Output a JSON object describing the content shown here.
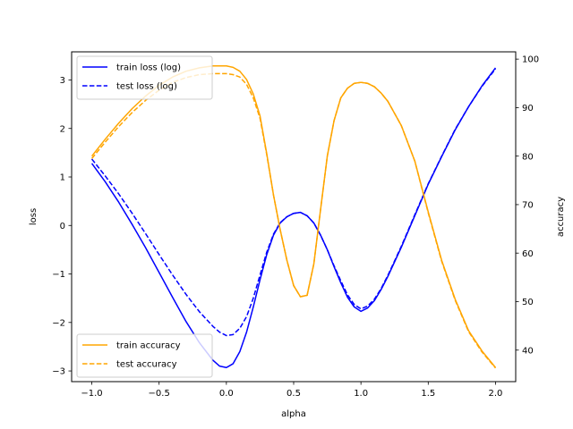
{
  "chart_data": {
    "type": "line",
    "xlabel": "alpha",
    "ylabel": "loss",
    "y2label": "accuracy",
    "xlim": [
      -1.15,
      2.15
    ],
    "ylim": [
      -3.22,
      3.58
    ],
    "y2lim": [
      33.5,
      101.5
    ],
    "xticks": [
      -1.0,
      -0.5,
      0.0,
      0.5,
      1.0,
      1.5,
      2.0
    ],
    "xtick_labels": [
      "−1.0",
      "−0.5",
      "0.0",
      "0.5",
      "1.0",
      "1.5",
      "2.0"
    ],
    "yticks": [
      -3,
      -2,
      -1,
      0,
      1,
      2,
      3
    ],
    "ytick_labels": [
      "−3",
      "−2",
      "−1",
      "0",
      "1",
      "2",
      "3"
    ],
    "y2ticks": [
      40,
      50,
      60,
      70,
      80,
      90,
      100
    ],
    "y2tick_labels": [
      "40",
      "50",
      "60",
      "70",
      "80",
      "90",
      "100"
    ],
    "grid": false,
    "legends": [
      {
        "placement": "top-left",
        "entries": [
          "train loss (log)",
          "test loss (log)"
        ]
      },
      {
        "placement": "bottom-left",
        "entries": [
          "train accuracy",
          "test accuracy"
        ]
      }
    ],
    "series": [
      {
        "name": "train loss (log)",
        "axis": "left",
        "color": "#0000ff",
        "style": "solid",
        "x": [
          -1.0,
          -0.9,
          -0.8,
          -0.7,
          -0.6,
          -0.5,
          -0.4,
          -0.3,
          -0.2,
          -0.1,
          -0.05,
          0.0,
          0.05,
          0.1,
          0.15,
          0.2,
          0.25,
          0.3,
          0.35,
          0.4,
          0.45,
          0.5,
          0.55,
          0.6,
          0.65,
          0.7,
          0.75,
          0.8,
          0.85,
          0.9,
          0.95,
          1.0,
          1.05,
          1.1,
          1.15,
          1.2,
          1.3,
          1.4,
          1.5,
          1.6,
          1.7,
          1.8,
          1.9,
          2.0
        ],
        "y": [
          1.28,
          0.9,
          0.48,
          0.02,
          -0.46,
          -0.97,
          -1.48,
          -1.98,
          -2.42,
          -2.78,
          -2.9,
          -2.93,
          -2.85,
          -2.6,
          -2.2,
          -1.68,
          -1.12,
          -0.6,
          -0.2,
          0.05,
          0.18,
          0.25,
          0.27,
          0.2,
          0.05,
          -0.2,
          -0.5,
          -0.85,
          -1.18,
          -1.48,
          -1.68,
          -1.77,
          -1.7,
          -1.55,
          -1.32,
          -1.05,
          -0.45,
          0.2,
          0.85,
          1.42,
          1.97,
          2.45,
          2.88,
          3.25
        ]
      },
      {
        "name": "test loss (log)",
        "axis": "left",
        "color": "#0000ff",
        "style": "dashed",
        "x": [
          -1.0,
          -0.9,
          -0.8,
          -0.7,
          -0.6,
          -0.5,
          -0.4,
          -0.3,
          -0.2,
          -0.1,
          -0.05,
          0.0,
          0.05,
          0.1,
          0.15,
          0.2,
          0.25,
          0.3,
          0.35,
          0.4,
          0.45,
          0.5,
          0.55,
          0.6,
          0.65,
          0.7,
          0.75,
          0.8,
          0.85,
          0.9,
          0.95,
          1.0,
          1.05,
          1.1,
          1.15,
          1.2,
          1.3,
          1.4,
          1.5,
          1.6,
          1.7,
          1.8,
          1.9,
          2.0
        ],
        "y": [
          1.37,
          1.02,
          0.65,
          0.25,
          -0.17,
          -0.6,
          -1.02,
          -1.42,
          -1.78,
          -2.08,
          -2.2,
          -2.27,
          -2.25,
          -2.12,
          -1.88,
          -1.5,
          -1.02,
          -0.55,
          -0.18,
          0.06,
          0.18,
          0.25,
          0.27,
          0.2,
          0.05,
          -0.2,
          -0.5,
          -0.83,
          -1.14,
          -1.43,
          -1.63,
          -1.72,
          -1.66,
          -1.52,
          -1.3,
          -1.03,
          -0.43,
          0.22,
          0.86,
          1.43,
          1.98,
          2.45,
          2.87,
          3.23
        ]
      },
      {
        "name": "train accuracy",
        "axis": "right",
        "color": "#ffa500",
        "style": "solid",
        "x": [
          -1.0,
          -0.9,
          -0.8,
          -0.7,
          -0.6,
          -0.5,
          -0.4,
          -0.3,
          -0.2,
          -0.1,
          0.0,
          0.05,
          0.1,
          0.15,
          0.2,
          0.25,
          0.3,
          0.35,
          0.4,
          0.45,
          0.5,
          0.55,
          0.6,
          0.65,
          0.7,
          0.75,
          0.8,
          0.85,
          0.9,
          0.95,
          1.0,
          1.05,
          1.1,
          1.15,
          1.2,
          1.3,
          1.4,
          1.5,
          1.6,
          1.7,
          1.8,
          1.9,
          2.0
        ],
        "y": [
          80.0,
          83.5,
          86.8,
          89.8,
          92.4,
          94.6,
          96.3,
          97.5,
          98.2,
          98.6,
          98.6,
          98.3,
          97.5,
          95.8,
          92.8,
          88.3,
          80.5,
          72.0,
          64.8,
          58.5,
          53.3,
          51.0,
          51.3,
          57.8,
          69.0,
          80.0,
          87.3,
          92.0,
          94.0,
          95.0,
          95.2,
          95.0,
          94.3,
          93.0,
          91.3,
          86.3,
          79.0,
          68.5,
          58.5,
          50.5,
          44.0,
          39.8,
          36.4
        ]
      },
      {
        "name": "test accuracy",
        "axis": "right",
        "color": "#ffa500",
        "style": "dashed",
        "x": [
          -1.0,
          -0.9,
          -0.8,
          -0.7,
          -0.6,
          -0.5,
          -0.4,
          -0.3,
          -0.2,
          -0.1,
          0.0,
          0.05,
          0.1,
          0.15,
          0.2,
          0.25,
          0.3,
          0.35,
          0.4,
          0.45,
          0.5,
          0.55,
          0.6,
          0.65,
          0.7,
          0.75,
          0.8,
          0.85,
          0.9,
          0.95,
          1.0,
          1.05,
          1.1,
          1.15,
          1.2,
          1.3,
          1.4,
          1.5,
          1.6,
          1.7,
          1.8,
          1.9,
          2.0
        ],
        "y": [
          79.5,
          82.9,
          86.1,
          89.0,
          91.5,
          93.6,
          95.2,
          96.2,
          96.8,
          97.0,
          97.0,
          96.8,
          96.3,
          94.8,
          92.0,
          87.8,
          80.3,
          72.0,
          64.8,
          58.5,
          53.3,
          51.0,
          51.3,
          57.8,
          69.0,
          80.0,
          87.3,
          92.0,
          94.0,
          95.0,
          95.2,
          95.0,
          94.3,
          93.0,
          91.3,
          86.3,
          79.0,
          68.3,
          58.3,
          50.3,
          43.8,
          39.6,
          36.3
        ]
      }
    ]
  }
}
